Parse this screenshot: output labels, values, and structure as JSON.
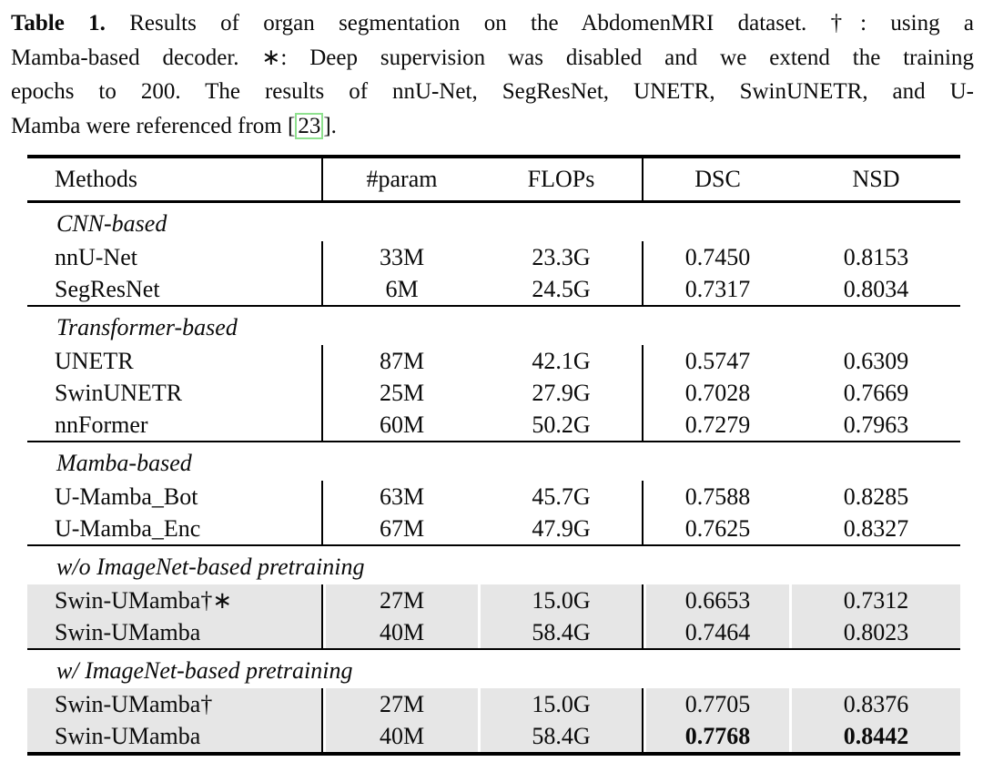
{
  "colors": {
    "row_shading": "#e6e6e6",
    "citation_box_border": "#8ee08e",
    "rule_color": "#000000",
    "text_color": "#0b0b0b"
  },
  "caption": {
    "label": "Table 1.",
    "line1_rest": "Results of organ segmentation on the AbdomenMRI dataset. †: using a",
    "line2": "Mamba-based decoder. ∗: Deep supervision was disabled and we extend the training",
    "line3": "epochs to 200. The results of nnU-Net, SegResNet, UNETR, SwinUNETR, and U-",
    "line4_prefix": "Mamba were referenced from [",
    "citation": "23",
    "line4_suffix": "]."
  },
  "table": {
    "headers": [
      "Methods",
      "#param",
      "FLOPs",
      "DSC",
      "NSD"
    ],
    "sections": [
      {
        "group": "CNN-based",
        "shaded": false,
        "rows": [
          [
            "nnU-Net",
            "33M",
            "23.3G",
            "0.7450",
            "0.8153"
          ],
          [
            "SegResNet",
            "6M",
            "24.5G",
            "0.7317",
            "0.8034"
          ]
        ]
      },
      {
        "group": "Transformer-based",
        "shaded": false,
        "rows": [
          [
            "UNETR",
            "87M",
            "42.1G",
            "0.5747",
            "0.6309"
          ],
          [
            "SwinUNETR",
            "25M",
            "27.9G",
            "0.7028",
            "0.7669"
          ],
          [
            "nnFormer",
            "60M",
            "50.2G",
            "0.7279",
            "0.7963"
          ]
        ]
      },
      {
        "group": "Mamba-based",
        "shaded": false,
        "rows": [
          [
            "U-Mamba_Bot",
            "63M",
            "45.7G",
            "0.7588",
            "0.8285"
          ],
          [
            "U-Mamba_Enc",
            "67M",
            "47.9G",
            "0.7625",
            "0.8327"
          ]
        ]
      },
      {
        "group": "w/o ImageNet-based pretraining",
        "shaded": true,
        "rows": [
          [
            "Swin-UMamba†∗",
            "27M",
            "15.0G",
            "0.6653",
            "0.7312"
          ],
          [
            "Swin-UMamba",
            "40M",
            "58.4G",
            "0.7464",
            "0.8023"
          ]
        ]
      },
      {
        "group": "w/ ImageNet-based pretraining",
        "shaded": true,
        "rows": [
          [
            "Swin-UMamba†",
            "27M",
            "15.0G",
            "0.7705",
            "0.8376"
          ],
          [
            "Swin-UMamba",
            "40M",
            "58.4G",
            "0.7768",
            "0.8442"
          ]
        ]
      }
    ]
  }
}
